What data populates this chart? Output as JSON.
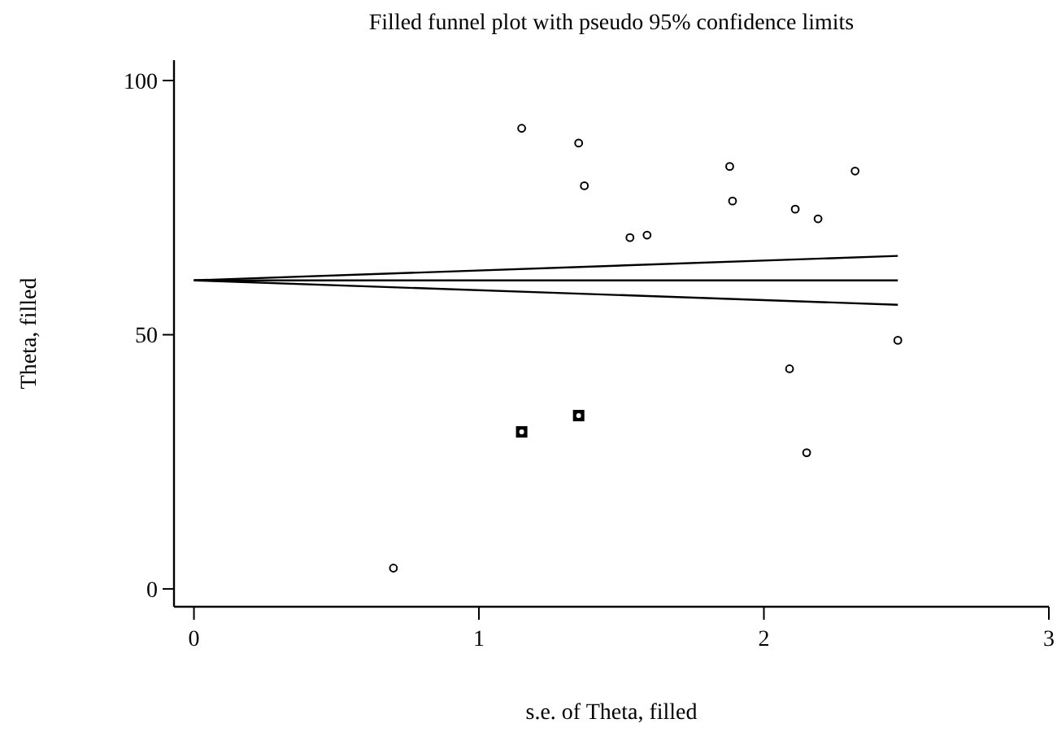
{
  "chart_data": {
    "type": "scatter",
    "title": "Filled funnel plot with pseudo 95% confidence limits",
    "xlabel": "s.e. of Theta, filled",
    "ylabel": "Theta, filled",
    "xlim": [
      -0.07,
      3
    ],
    "xticks": [
      0,
      1,
      2,
      3
    ],
    "ylim": [
      -3.5,
      104
    ],
    "yticks": [
      0,
      50,
      100
    ],
    "grid": false,
    "series": [
      {
        "marker": "circle",
        "color": "#000000",
        "x": [
          0.7,
          1.15,
          1.35,
          1.37,
          1.53,
          1.59,
          1.88,
          1.89,
          2.09,
          2.11,
          2.15,
          2.19,
          2.32,
          2.47
        ],
        "values": [
          4.1,
          90.6,
          87.7,
          79.3,
          69.1,
          69.6,
          83.1,
          76.3,
          43.3,
          74.7,
          26.8,
          72.8,
          82.2,
          48.9
        ]
      },
      {
        "marker": "square",
        "color": "#000000",
        "x": [
          1.15,
          1.35
        ],
        "values": [
          30.9,
          34.1
        ]
      },
      {
        "type": "line",
        "marker": "none",
        "line_style": "solid",
        "color": "#000000",
        "x": [
          0,
          2.47
        ],
        "values": [
          60.7,
          60.7
        ]
      },
      {
        "type": "line",
        "marker": "none",
        "line_style": "solid",
        "color": "#000000",
        "x": [
          0,
          2.47
        ],
        "values": [
          60.7,
          65.5
        ]
      },
      {
        "type": "line",
        "marker": "none",
        "line_style": "solid",
        "color": "#000000",
        "x": [
          0,
          2.47
        ],
        "values": [
          60.7,
          55.9
        ]
      }
    ]
  }
}
